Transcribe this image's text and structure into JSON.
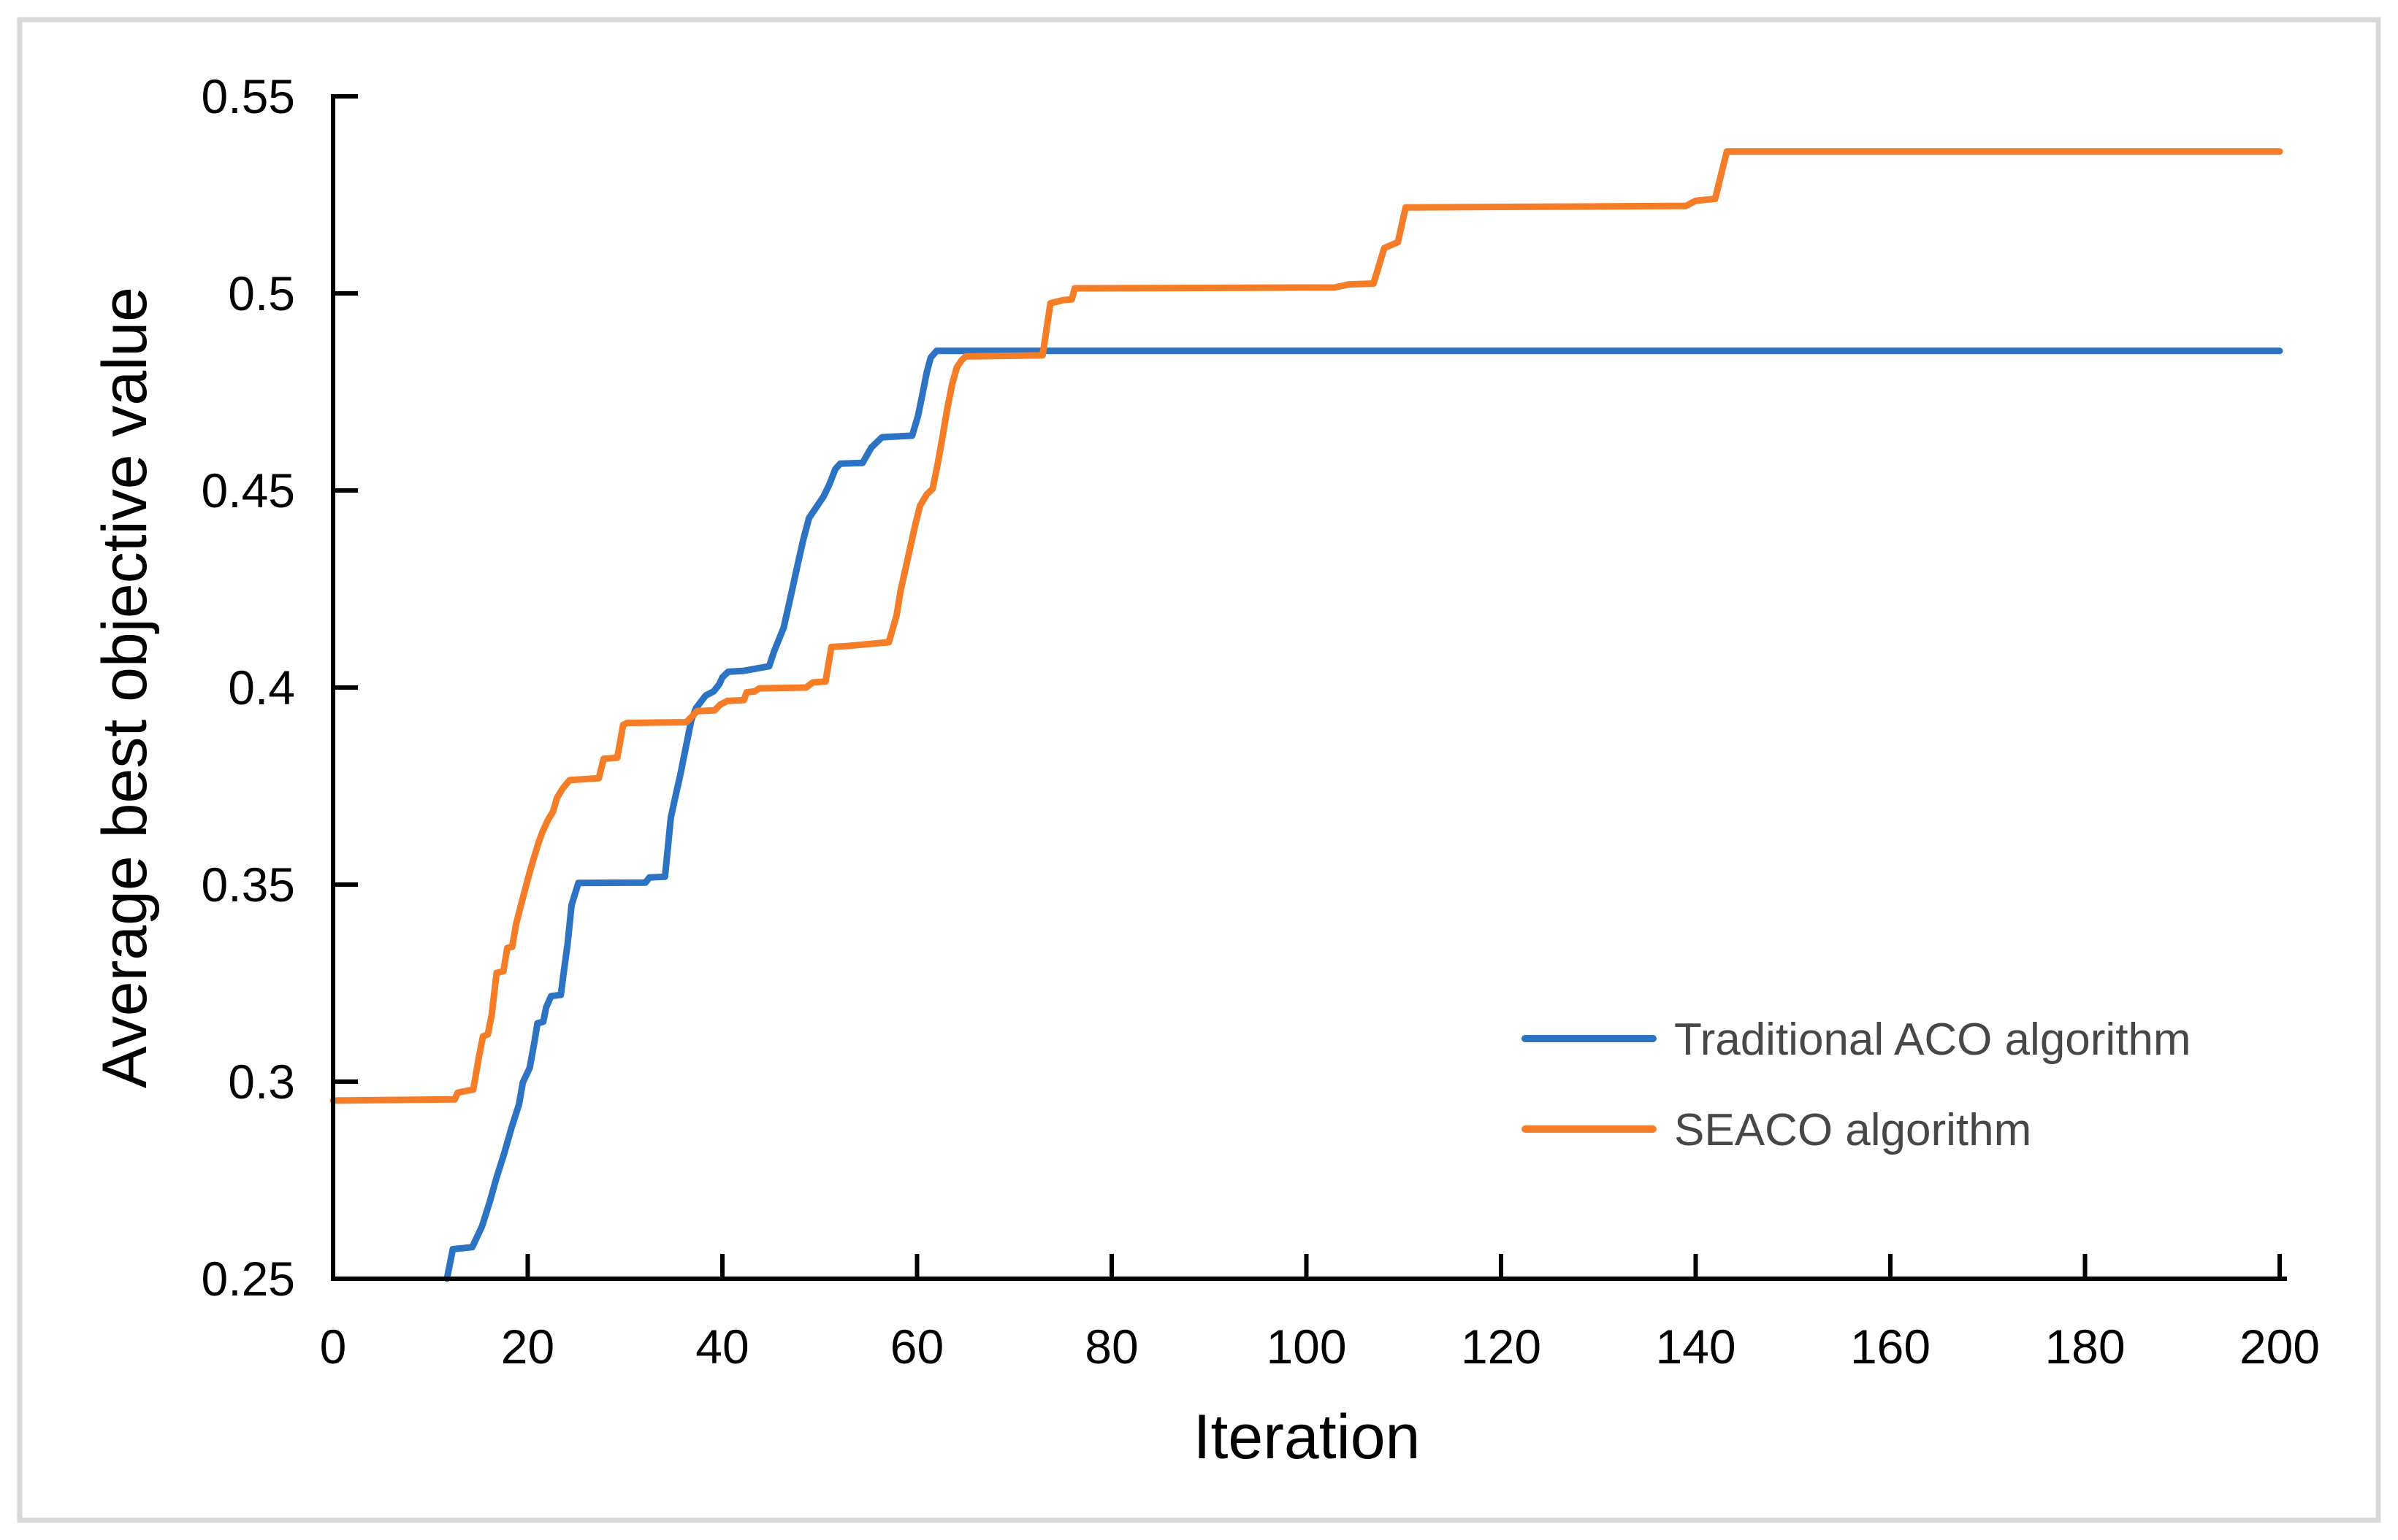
{
  "frame": {
    "border_color": "#d8d8d8",
    "background": "#ffffff"
  },
  "chart_data": {
    "type": "line",
    "title": "",
    "xlabel": "Iteration",
    "ylabel": "Average best objective value",
    "xlim": [
      0,
      200
    ],
    "ylim": [
      0.25,
      0.55
    ],
    "grid": "off",
    "tick_direction": "in",
    "axis_color": "#000000",
    "tick_label_color": "#000000",
    "legend_position": "inside lower right",
    "legend_text_color": "#474747",
    "x_ticks": {
      "values": [
        0,
        20,
        40,
        60,
        80,
        100,
        120,
        140,
        160,
        180,
        200
      ],
      "labels": [
        "0",
        "20",
        "40",
        "60",
        "80",
        "100",
        "120",
        "140",
        "160",
        "180",
        "200"
      ]
    },
    "y_ticks": {
      "values": [
        0.25,
        0.3,
        0.35,
        0.4,
        0.45,
        0.5,
        0.55
      ],
      "labels": [
        "0.25",
        "0.3",
        "0.35",
        "0.4",
        "0.45",
        "0.5",
        "0.55"
      ]
    },
    "series": [
      {
        "name": "Traditional ACO algorithm",
        "color": "#2C73C4",
        "final_value": 0.485,
        "points": [
          [
            11.7,
            0.25
          ],
          [
            12.3,
            0.2575
          ],
          [
            14.3,
            0.258
          ],
          [
            15.3,
            0.2633
          ],
          [
            16.1,
            0.2695
          ],
          [
            16.8,
            0.2757
          ],
          [
            17.6,
            0.2819
          ],
          [
            18.3,
            0.288
          ],
          [
            19.1,
            0.2942
          ],
          [
            19.5,
            0.2998
          ],
          [
            20.2,
            0.3035
          ],
          [
            20.7,
            0.3102
          ],
          [
            21.0,
            0.3148
          ],
          [
            21.6,
            0.3152
          ],
          [
            21.9,
            0.3189
          ],
          [
            22.4,
            0.3217
          ],
          [
            23.4,
            0.322
          ],
          [
            23.7,
            0.3278
          ],
          [
            24.1,
            0.335
          ],
          [
            24.5,
            0.3448
          ],
          [
            25.2,
            0.3504
          ],
          [
            32.1,
            0.3505
          ],
          [
            32.5,
            0.3518
          ],
          [
            34.1,
            0.352
          ],
          [
            34.7,
            0.367
          ],
          [
            35.2,
            0.3726
          ],
          [
            35.7,
            0.3781
          ],
          [
            36.1,
            0.3831
          ],
          [
            36.5,
            0.388
          ],
          [
            36.8,
            0.3917
          ],
          [
            37.3,
            0.3948
          ],
          [
            38.3,
            0.398
          ],
          [
            39.1,
            0.399
          ],
          [
            39.7,
            0.4009
          ],
          [
            40.0,
            0.4026
          ],
          [
            40.6,
            0.404
          ],
          [
            42.1,
            0.4042
          ],
          [
            44.8,
            0.4054
          ],
          [
            45.3,
            0.4091
          ],
          [
            45.6,
            0.4109
          ],
          [
            46.3,
            0.4152
          ],
          [
            46.8,
            0.4207
          ],
          [
            47.3,
            0.4263
          ],
          [
            47.8,
            0.4319
          ],
          [
            48.3,
            0.4374
          ],
          [
            48.9,
            0.443
          ],
          [
            50.4,
            0.4485
          ],
          [
            51.0,
            0.4516
          ],
          [
            51.3,
            0.4535
          ],
          [
            51.6,
            0.4554
          ],
          [
            52.1,
            0.4568
          ],
          [
            54.4,
            0.457
          ],
          [
            55.3,
            0.4609
          ],
          [
            56.4,
            0.4635
          ],
          [
            59.5,
            0.4639
          ],
          [
            59.8,
            0.4664
          ],
          [
            60.1,
            0.4689
          ],
          [
            60.6,
            0.475
          ],
          [
            61.0,
            0.48
          ],
          [
            61.4,
            0.4837
          ],
          [
            62.0,
            0.4854
          ],
          [
            200,
            0.4854
          ]
        ]
      },
      {
        "name": "SEACO algorithm",
        "color": "#F57D28",
        "final_value": 0.536,
        "points": [
          [
            0,
            0.2952
          ],
          [
            12.5,
            0.2955
          ],
          [
            12.8,
            0.2972
          ],
          [
            14.4,
            0.298
          ],
          [
            15.0,
            0.3065
          ],
          [
            15.4,
            0.3115
          ],
          [
            15.9,
            0.312
          ],
          [
            16.3,
            0.317
          ],
          [
            16.8,
            0.3276
          ],
          [
            17.5,
            0.328
          ],
          [
            17.9,
            0.3339
          ],
          [
            18.4,
            0.3342
          ],
          [
            18.8,
            0.3399
          ],
          [
            19.3,
            0.3448
          ],
          [
            19.7,
            0.3485
          ],
          [
            20.0,
            0.3513
          ],
          [
            20.3,
            0.354
          ],
          [
            20.6,
            0.3565
          ],
          [
            21.1,
            0.3606
          ],
          [
            21.5,
            0.3633
          ],
          [
            22.1,
            0.3665
          ],
          [
            22.6,
            0.3685
          ],
          [
            23.0,
            0.372
          ],
          [
            23.6,
            0.3744
          ],
          [
            24.3,
            0.3765
          ],
          [
            27.3,
            0.377
          ],
          [
            27.8,
            0.3819
          ],
          [
            29.2,
            0.3822
          ],
          [
            29.8,
            0.3905
          ],
          [
            30.2,
            0.391
          ],
          [
            36.3,
            0.3912
          ],
          [
            37.4,
            0.394
          ],
          [
            39.2,
            0.3942
          ],
          [
            39.8,
            0.3957
          ],
          [
            40.5,
            0.3966
          ],
          [
            42.2,
            0.3968
          ],
          [
            42.5,
            0.3988
          ],
          [
            43.3,
            0.399
          ],
          [
            43.8,
            0.3998
          ],
          [
            48.6,
            0.4
          ],
          [
            49.3,
            0.4013
          ],
          [
            50.6,
            0.4015
          ],
          [
            51.2,
            0.4103
          ],
          [
            52.7,
            0.4105
          ],
          [
            57.1,
            0.4115
          ],
          [
            57.9,
            0.4183
          ],
          [
            58.3,
            0.4244
          ],
          [
            58.8,
            0.43
          ],
          [
            59.3,
            0.4356
          ],
          [
            59.8,
            0.4411
          ],
          [
            60.3,
            0.4461
          ],
          [
            61.0,
            0.449
          ],
          [
            61.6,
            0.4504
          ],
          [
            62.1,
            0.4565
          ],
          [
            62.6,
            0.4633
          ],
          [
            63.1,
            0.4707
          ],
          [
            63.6,
            0.4769
          ],
          [
            64.1,
            0.4813
          ],
          [
            64.6,
            0.4831
          ],
          [
            65.0,
            0.484
          ],
          [
            72.9,
            0.4843
          ],
          [
            73.7,
            0.4975
          ],
          [
            75.0,
            0.4983
          ],
          [
            75.9,
            0.4985
          ],
          [
            76.2,
            0.5013
          ],
          [
            102.9,
            0.5015
          ],
          [
            104.4,
            0.5023
          ],
          [
            106.9,
            0.5025
          ],
          [
            108.0,
            0.5115
          ],
          [
            109.4,
            0.513
          ],
          [
            110.2,
            0.5218
          ],
          [
            139.0,
            0.5222
          ],
          [
            140.0,
            0.5235
          ],
          [
            142.0,
            0.524
          ],
          [
            143.2,
            0.536
          ],
          [
            200,
            0.536
          ]
        ]
      }
    ]
  }
}
